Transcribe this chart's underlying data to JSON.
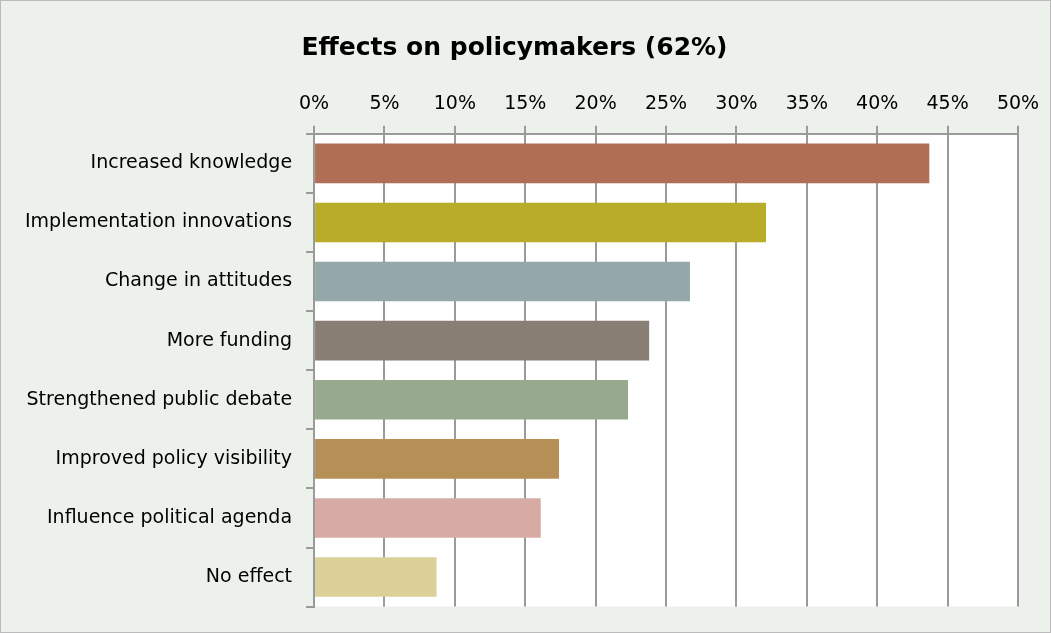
{
  "chart_data": {
    "type": "bar",
    "orientation": "horizontal",
    "title": "Effects on policymakers (62%)",
    "categories": [
      "Increased knowledge",
      "Implementation innovations",
      "Change in attitudes",
      "More funding",
      "Strengthened public debate",
      "Improved policy visibility",
      "Influence political agenda",
      "No effect"
    ],
    "values": [
      43.7,
      32.1,
      26.7,
      23.8,
      22.3,
      17.4,
      16.1,
      8.7
    ],
    "colors": [
      "#b06e55",
      "#b9ac28",
      "#94a8aa",
      "#897e74",
      "#97aa8e",
      "#b68f56",
      "#d6aba3",
      "#dbd098"
    ],
    "xlim": [
      0,
      50
    ],
    "xticks": [
      {
        "value": 0,
        "label": "0%"
      },
      {
        "value": 5,
        "label": "5%"
      },
      {
        "value": 10,
        "label": "10%"
      },
      {
        "value": 15,
        "label": "15%"
      },
      {
        "value": 20,
        "label": "20%"
      },
      {
        "value": 25,
        "label": "25%"
      },
      {
        "value": 30,
        "label": "30%"
      },
      {
        "value": 35,
        "label": "35%"
      },
      {
        "value": 40,
        "label": "40%"
      },
      {
        "value": 45,
        "label": "45%"
      },
      {
        "value": 50,
        "label": "50%"
      }
    ],
    "grid": "x"
  }
}
